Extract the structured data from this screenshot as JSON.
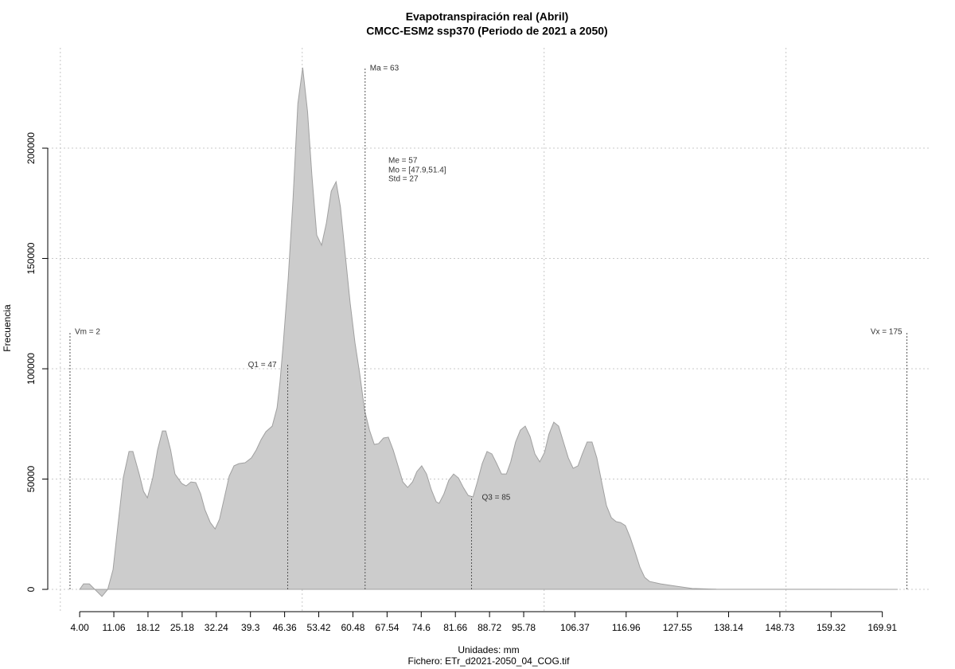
{
  "chart_data": {
    "type": "area",
    "title": "Evapotranspiración real (Abril)",
    "subtitle": "CMCC-ESM2 ssp370 (Periodo de 2021 a 2050)",
    "x_label": "Unidades: mm",
    "footer": "Fichero: ETr_d2021-2050_04_COG.tif",
    "y_label": "Frecuencia",
    "color": "#cccccc",
    "x": [
      4.0,
      4.8,
      6.0,
      8.6,
      9.8,
      10.9,
      11.9,
      13.0,
      14.2,
      15.0,
      16.3,
      17.2,
      18.0,
      19.1,
      20.1,
      21.1,
      21.8,
      22.8,
      23.7,
      25.1,
      26.0,
      27.0,
      28.0,
      29.0,
      29.9,
      31.0,
      32.0,
      32.9,
      33.9,
      34.9,
      35.9,
      36.9,
      38.2,
      39.5,
      40.5,
      41.5,
      42.5,
      43.8,
      44.8,
      45.4,
      46.1,
      47.1,
      48.1,
      49.1,
      50.1,
      51.1,
      52.0,
      53.0,
      54.0,
      55.0,
      56.0,
      57.0,
      57.9,
      58.9,
      59.9,
      60.9,
      61.9,
      62.9,
      63.9,
      64.9,
      65.8,
      66.8,
      67.8,
      68.8,
      69.8,
      70.8,
      71.8,
      72.8,
      73.7,
      74.7,
      75.7,
      76.7,
      77.7,
      78.3,
      79.3,
      80.3,
      81.3,
      82.3,
      83.3,
      84.3,
      85.3,
      86.2,
      87.2,
      88.2,
      89.2,
      90.2,
      91.2,
      92.2,
      93.1,
      94.1,
      95.1,
      96.1,
      97.1,
      98.1,
      99.1,
      100.1,
      101.0,
      102.0,
      103.0,
      104.0,
      105.0,
      106.0,
      107.0,
      107.9,
      108.9,
      109.9,
      110.9,
      111.9,
      112.9,
      113.9,
      114.9,
      115.8,
      116.8,
      117.8,
      118.8,
      119.8,
      120.8,
      121.8,
      124.1,
      127.4,
      130.6,
      135.6,
      173.1
    ],
    "values": [
      0,
      2500,
      2500,
      -3200,
      0,
      9000,
      28900,
      50500,
      62500,
      62500,
      52300,
      44400,
      41500,
      50500,
      63200,
      71800,
      71800,
      63200,
      52300,
      48000,
      46900,
      48700,
      48400,
      43300,
      36100,
      30300,
      27400,
      31800,
      41500,
      51300,
      56000,
      57000,
      57400,
      59600,
      63200,
      67900,
      71500,
      74000,
      82300,
      93900,
      111900,
      140800,
      176900,
      220200,
      236500,
      216600,
      187700,
      160600,
      156000,
      166100,
      180500,
      184800,
      173300,
      151600,
      130000,
      111900,
      97500,
      81200,
      72200,
      65700,
      66100,
      68600,
      69000,
      63200,
      56000,
      48700,
      46200,
      48700,
      53400,
      56000,
      52300,
      45100,
      39700,
      39000,
      43300,
      49500,
      52300,
      50500,
      46200,
      42600,
      41900,
      48700,
      57000,
      62500,
      61400,
      57000,
      52300,
      52300,
      57800,
      66800,
      72200,
      74000,
      69300,
      61400,
      57800,
      62100,
      70400,
      75800,
      74000,
      66800,
      59600,
      54900,
      56000,
      61400,
      66800,
      66800,
      59600,
      48700,
      37900,
      32500,
      30700,
      30300,
      28900,
      23500,
      17000,
      10100,
      5400,
      3600,
      2500,
      1400,
      400,
      100,
      0
    ],
    "xlim": [
      -2.6,
      180.0
    ],
    "ylim": [
      -10100,
      245500
    ],
    "xticks": [
      {
        "value": 4,
        "label": "4.00"
      },
      11.06,
      18.12,
      25.18,
      32.24,
      39.3,
      46.36,
      53.42,
      60.48,
      67.54,
      74.6,
      81.66,
      88.72,
      95.78,
      106.37,
      116.96,
      127.55,
      138.14,
      148.73,
      159.32,
      169.91
    ],
    "yticks": [
      0,
      50000,
      100000,
      150000,
      200000
    ],
    "xgrid": [
      0,
      50,
      100,
      150
    ],
    "grid": true,
    "annotations": [
      {
        "label": "Vm = 2",
        "x": 2,
        "y": 117000
      },
      {
        "label": "Q1 = 47",
        "x": 47,
        "y": 102000
      },
      {
        "label": "Ma = 63",
        "x": 63,
        "y": 236500
      },
      {
        "label": "Q3 = 85",
        "x": 85,
        "y": 42000
      },
      {
        "label": "Vx = 175",
        "x": 175,
        "y": 117000
      }
    ],
    "stats": [
      "Me = 57",
      "Mo = [47.9,51.4]",
      "Std = 27"
    ]
  }
}
